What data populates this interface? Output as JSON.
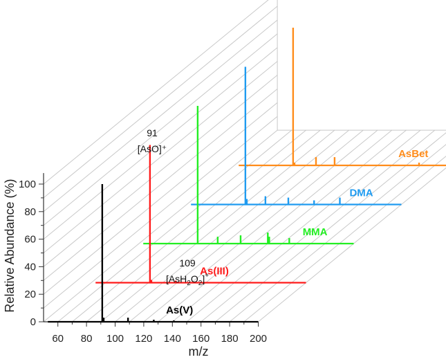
{
  "chart_data": {
    "type": "line",
    "title": "",
    "xlabel": "m/z",
    "ylabel": "Relative Abundance (%)",
    "xlim": [
      50,
      200
    ],
    "ylim": [
      0,
      110
    ],
    "x_ticks": [
      "60",
      "80",
      "100",
      "120",
      "140",
      "160",
      "180",
      "200"
    ],
    "y_ticks": [
      "0",
      "20",
      "40",
      "60",
      "80",
      "100"
    ],
    "grid": true,
    "series": [
      {
        "name": "As(V)",
        "color": "#000000",
        "depth": 0,
        "x_start": 53,
        "x_end": 200,
        "peaks": [
          {
            "x": 91,
            "y": 100
          },
          {
            "x": 92,
            "y": 3
          },
          {
            "x": 109,
            "y": 3
          },
          {
            "x": 127,
            "y": 1.5
          },
          {
            "x": 141,
            "y": 1
          }
        ]
      },
      {
        "name": "As(III)",
        "color": "#ff1a1a",
        "depth": 1,
        "x_start": 53,
        "x_end": 200,
        "peaks": [
          {
            "x": 91,
            "y": 100
          },
          {
            "x": 92,
            "y": 2
          },
          {
            "x": 109,
            "y": 1.5
          }
        ]
      },
      {
        "name": "MMA",
        "color": "#22ee22",
        "depth": 2,
        "x_start": 53,
        "x_end": 200,
        "peaks": [
          {
            "x": 91,
            "y": 100
          },
          {
            "x": 105,
            "y": 5
          },
          {
            "x": 121,
            "y": 6
          },
          {
            "x": 140,
            "y": 8
          },
          {
            "x": 141,
            "y": 5
          },
          {
            "x": 155,
            "y": 4
          }
        ]
      },
      {
        "name": "DMA",
        "color": "#1f9bf0",
        "depth": 3,
        "x_start": 53,
        "x_end": 200,
        "peaks": [
          {
            "x": 91,
            "y": 100
          },
          {
            "x": 92,
            "y": 4
          },
          {
            "x": 105,
            "y": 6
          },
          {
            "x": 121,
            "y": 5
          },
          {
            "x": 139,
            "y": 3
          },
          {
            "x": 157,
            "y": 5
          }
        ]
      },
      {
        "name": "AsBet",
        "color": "#ff8c1a",
        "depth": 4,
        "x_start": 53,
        "x_end": 200,
        "peaks": [
          {
            "x": 91,
            "y": 100
          },
          {
            "x": 92,
            "y": 2
          },
          {
            "x": 107,
            "y": 6
          },
          {
            "x": 120,
            "y": 6
          },
          {
            "x": 179,
            "y": 2
          }
        ]
      }
    ],
    "annotations": [
      {
        "number": "91",
        "formula": "[AsO]⁺"
      },
      {
        "number": "109",
        "formula_parts": [
          "[AsH",
          "2",
          "O",
          "2",
          "]",
          "+"
        ]
      }
    ]
  }
}
